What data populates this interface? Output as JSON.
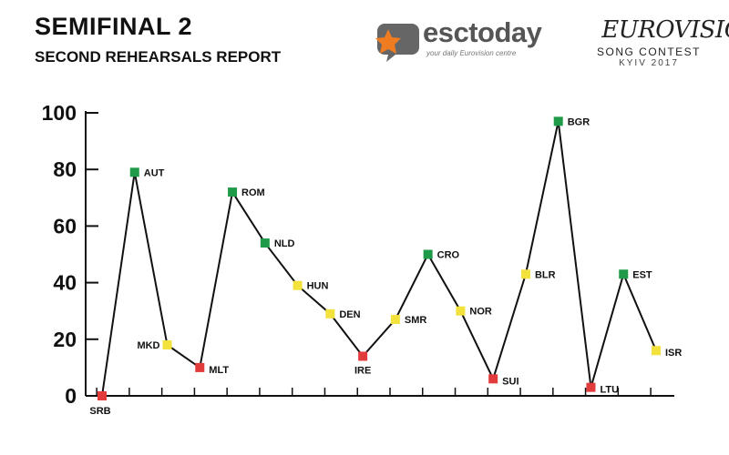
{
  "header": {
    "title": "SEMIFINAL 2",
    "subtitle": "SECOND REHEARSALS REPORT"
  },
  "logos": {
    "esctoday": {
      "name": "esctoday",
      "tagline": "your daily Eurovision centre",
      "icon": "star-speech-bubble-icon",
      "accent": "#f07c22"
    },
    "eurovision": {
      "name": "EUROVISION",
      "subtitle": "SONG CONTEST",
      "city": "KYIV 2017",
      "icon": "heart-flag-icon",
      "heart_colors": [
        "#2f6fd1",
        "#f5d20a"
      ]
    }
  },
  "chart_data": {
    "type": "line",
    "ylim": [
      0,
      100
    ],
    "yticks": [
      0,
      20,
      40,
      60,
      80,
      100
    ],
    "categories": [
      "SRB",
      "AUT",
      "MKD",
      "MLT",
      "ROM",
      "NLD",
      "HUN",
      "DEN",
      "IRE",
      "SMR",
      "CRO",
      "NOR",
      "SUI",
      "BLR",
      "BGR",
      "LTU",
      "EST",
      "ISR"
    ],
    "values": [
      0,
      79,
      18,
      10,
      72,
      54,
      39,
      29,
      14,
      27,
      50,
      30,
      6,
      43,
      97,
      3,
      43,
      16
    ],
    "marker_status": [
      "red",
      "green",
      "yellow",
      "red",
      "green",
      "green",
      "yellow",
      "yellow",
      "red",
      "yellow",
      "green",
      "yellow",
      "red",
      "yellow",
      "green",
      "red",
      "green",
      "yellow"
    ],
    "status_colors": {
      "green": "#1f9a48",
      "yellow": "#f3e23c",
      "red": "#e23b3b"
    },
    "line_color": "#111111",
    "grid": false
  }
}
